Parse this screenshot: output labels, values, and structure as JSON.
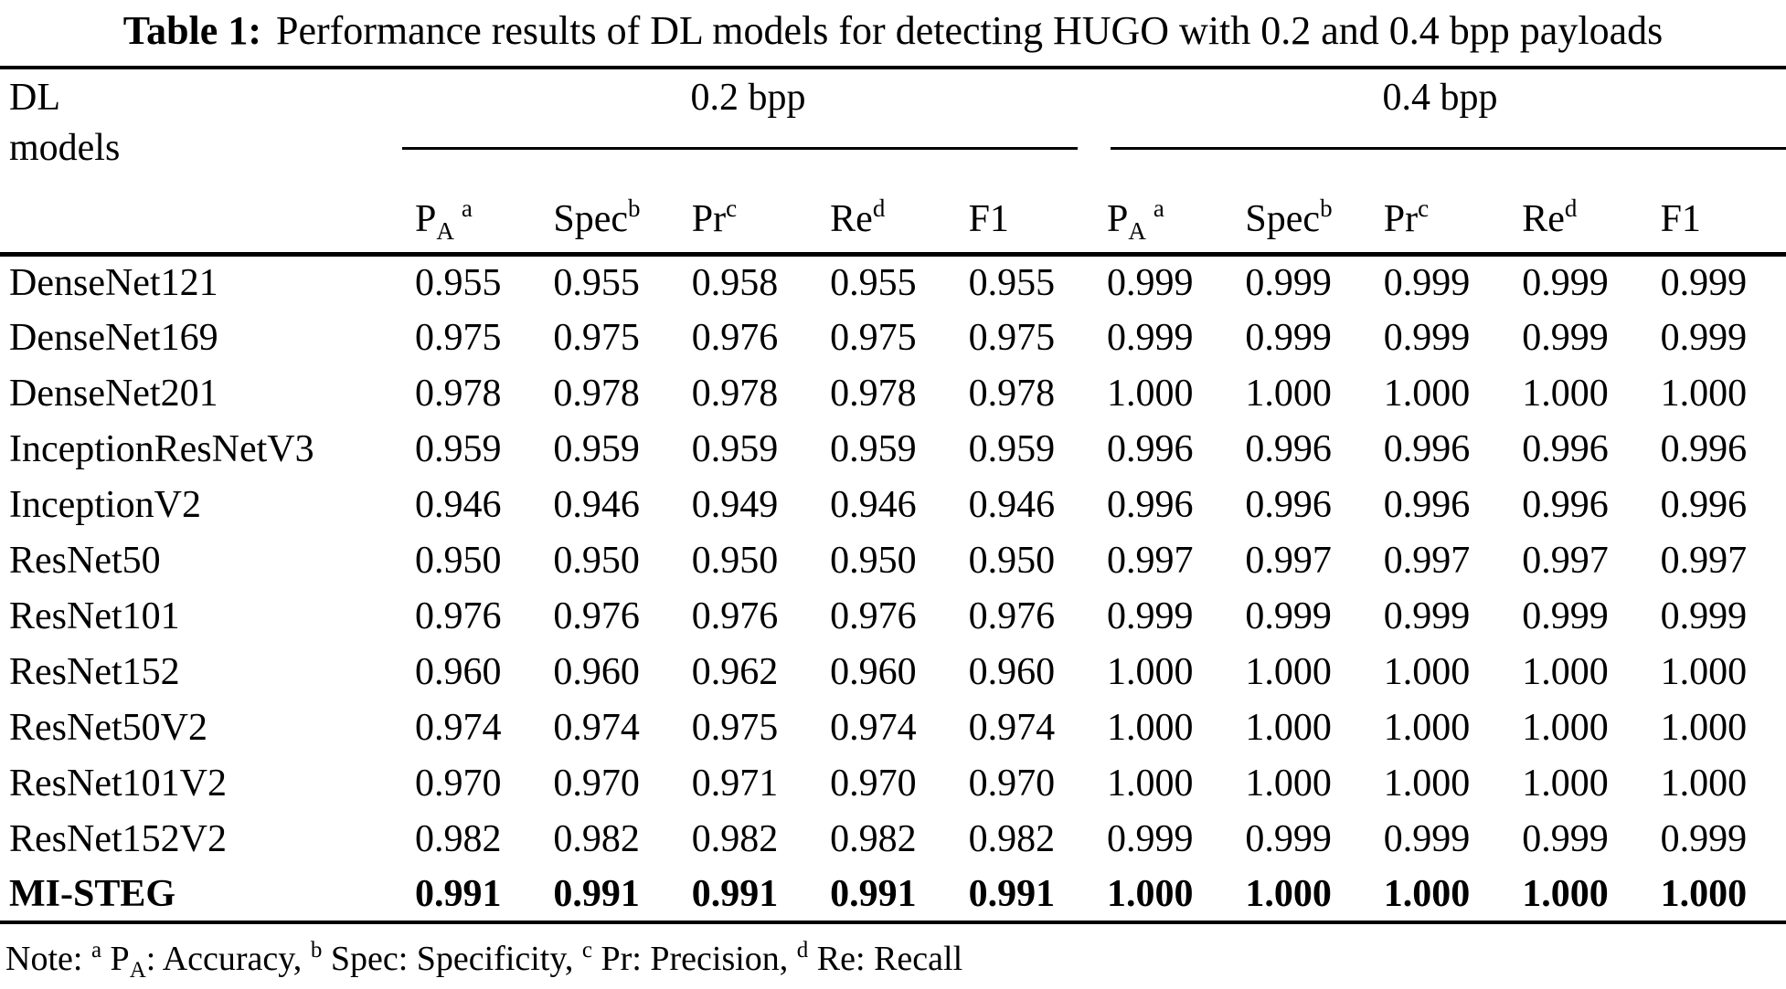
{
  "caption": {
    "label": "Table 1:",
    "text": "Performance results of DL models for detecting HUGO with 0.2 and 0.4 bpp payloads"
  },
  "table": {
    "stub": {
      "line1": "DL",
      "line2": "models"
    },
    "groups": [
      {
        "label": "0.2 bpp"
      },
      {
        "label": "0.4 bpp"
      }
    ],
    "metrics": [
      {
        "base": "P",
        "sub": "A",
        "sup": "a"
      },
      {
        "base": "Spec",
        "sub": "",
        "sup": "b"
      },
      {
        "base": "Pr",
        "sub": "",
        "sup": "c"
      },
      {
        "base": "Re",
        "sub": "",
        "sup": "d"
      },
      {
        "base": "F1",
        "sub": "",
        "sup": ""
      }
    ],
    "rows": [
      {
        "model": "DenseNet121",
        "values": [
          "0.955",
          "0.955",
          "0.958",
          "0.955",
          "0.955",
          "0.999",
          "0.999",
          "0.999",
          "0.999",
          "0.999"
        ]
      },
      {
        "model": "DenseNet169",
        "values": [
          "0.975",
          "0.975",
          "0.976",
          "0.975",
          "0.975",
          "0.999",
          "0.999",
          "0.999",
          "0.999",
          "0.999"
        ]
      },
      {
        "model": "DenseNet201",
        "values": [
          "0.978",
          "0.978",
          "0.978",
          "0.978",
          "0.978",
          "1.000",
          "1.000",
          "1.000",
          "1.000",
          "1.000"
        ]
      },
      {
        "model": "InceptionResNetV3",
        "values": [
          "0.959",
          "0.959",
          "0.959",
          "0.959",
          "0.959",
          "0.996",
          "0.996",
          "0.996",
          "0.996",
          "0.996"
        ]
      },
      {
        "model": "InceptionV2",
        "values": [
          "0.946",
          "0.946",
          "0.949",
          "0.946",
          "0.946",
          "0.996",
          "0.996",
          "0.996",
          "0.996",
          "0.996"
        ]
      },
      {
        "model": "ResNet50",
        "values": [
          "0.950",
          "0.950",
          "0.950",
          "0.950",
          "0.950",
          "0.997",
          "0.997",
          "0.997",
          "0.997",
          "0.997"
        ]
      },
      {
        "model": "ResNet101",
        "values": [
          "0.976",
          "0.976",
          "0.976",
          "0.976",
          "0.976",
          "0.999",
          "0.999",
          "0.999",
          "0.999",
          "0.999"
        ]
      },
      {
        "model": "ResNet152",
        "values": [
          "0.960",
          "0.960",
          "0.962",
          "0.960",
          "0.960",
          "1.000",
          "1.000",
          "1.000",
          "1.000",
          "1.000"
        ]
      },
      {
        "model": "ResNet50V2",
        "values": [
          "0.974",
          "0.974",
          "0.975",
          "0.974",
          "0.974",
          "1.000",
          "1.000",
          "1.000",
          "1.000",
          "1.000"
        ]
      },
      {
        "model": "ResNet101V2",
        "values": [
          "0.970",
          "0.970",
          "0.971",
          "0.970",
          "0.970",
          "1.000",
          "1.000",
          "1.000",
          "1.000",
          "1.000"
        ]
      },
      {
        "model": "ResNet152V2",
        "values": [
          "0.982",
          "0.982",
          "0.982",
          "0.982",
          "0.982",
          "0.999",
          "0.999",
          "0.999",
          "0.999",
          "0.999"
        ]
      },
      {
        "model": "MI-STEG",
        "values": [
          "0.991",
          "0.991",
          "0.991",
          "0.991",
          "0.991",
          "1.000",
          "1.000",
          "1.000",
          "1.000",
          "1.000"
        ],
        "bold": true
      }
    ]
  },
  "note": {
    "prefix": "Note:",
    "items": [
      {
        "sup": "a",
        "base": "P",
        "sub": "A",
        "desc": ": Accuracy,"
      },
      {
        "sup": "b",
        "base": "Spec",
        "sub": "",
        "desc": ": Specificity,"
      },
      {
        "sup": "c",
        "base": "Pr",
        "sub": "",
        "desc": ": Precision,"
      },
      {
        "sup": "d",
        "base": "Re",
        "sub": "",
        "desc": ": Recall"
      }
    ]
  }
}
